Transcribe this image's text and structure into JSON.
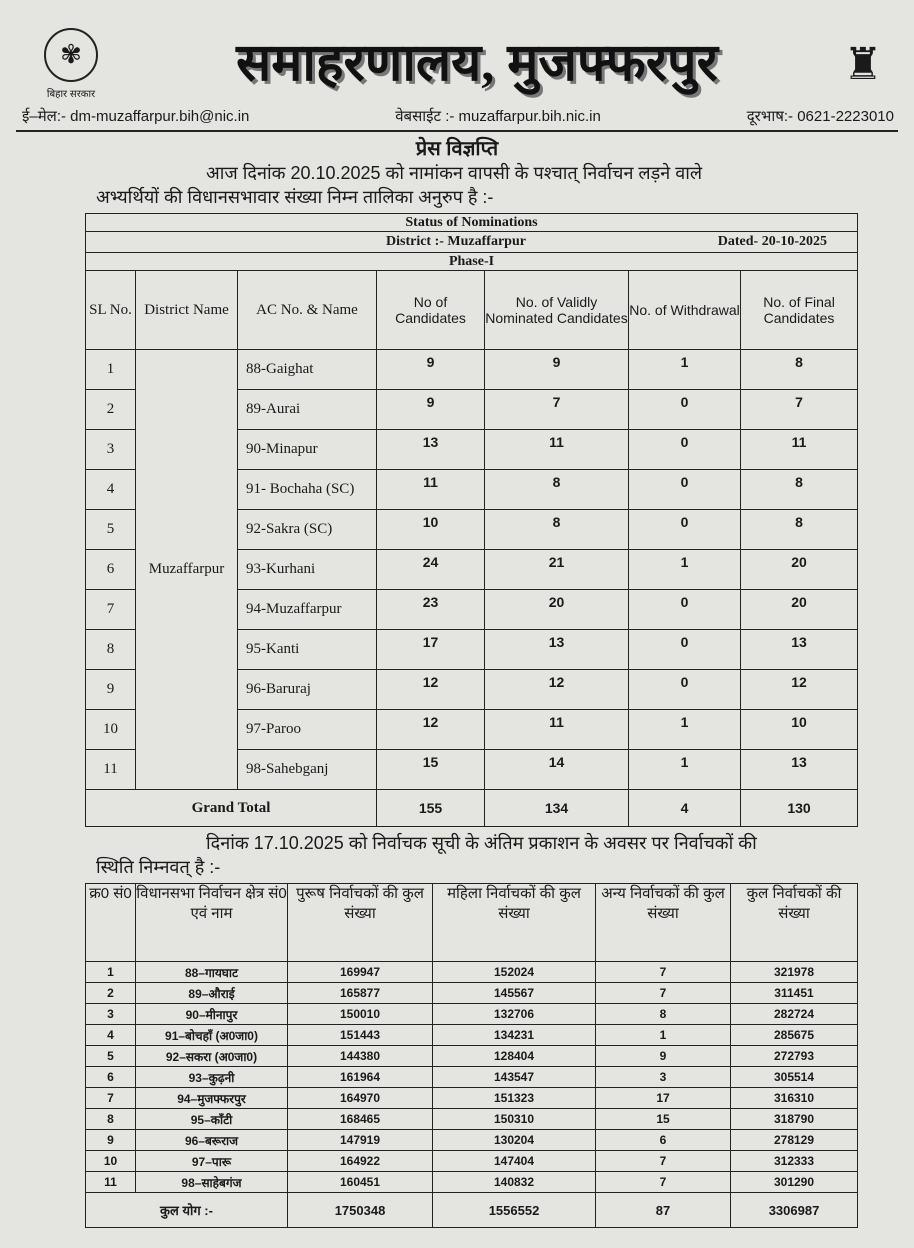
{
  "header": {
    "logo_left_caption": "बिहार सरकार",
    "title": "समाहरणालय, मुजफ्फरपुर",
    "email": "ई–मेल:- dm-muzaffarpur.bih@nic.in",
    "website": "वेबसाईट :- muzaffarpur.bih.nic.in",
    "phone": "दूरभाष:- 0621-2223010",
    "press_release": "प्रेस विज्ञप्ति",
    "intro_line1": "आज दिनांक 20.10.2025 को नामांकन वापसी के पश्चात् निर्वाचन लड़ने वाले",
    "intro_line2": "अभ्यर्थियों की विधानसभावार संख्या निम्न तालिका अनुरुप है :-"
  },
  "nominations": {
    "title": "Status of Nominations",
    "district": "District :- Muzaffarpur",
    "dated": "Dated- 20-10-2025",
    "phase": "Phase-I",
    "columns": [
      "SL No.",
      "District Name",
      "AC No. & Name",
      "No of Candidates",
      "No. of Validly Nominated Candidates",
      "No. of Withdrawal",
      "No. of Final Candidates"
    ],
    "district_name": "Muzaffarpur",
    "rows": [
      [
        "1",
        "88-Gaighat",
        "9",
        "9",
        "1",
        "8"
      ],
      [
        "2",
        "89-Aurai",
        "9",
        "7",
        "0",
        "7"
      ],
      [
        "3",
        "90-Minapur",
        "13",
        "11",
        "0",
        "11"
      ],
      [
        "4",
        "91- Bochaha (SC)",
        "11",
        "8",
        "0",
        "8"
      ],
      [
        "5",
        "92-Sakra (SC)",
        "10",
        "8",
        "0",
        "8"
      ],
      [
        "6",
        "93-Kurhani",
        "24",
        "21",
        "1",
        "20"
      ],
      [
        "7",
        "94-Muzaffarpur",
        "23",
        "20",
        "0",
        "20"
      ],
      [
        "8",
        "95-Kanti",
        "17",
        "13",
        "0",
        "13"
      ],
      [
        "9",
        "96-Baruraj",
        "12",
        "12",
        "0",
        "12"
      ],
      [
        "10",
        "97-Paroo",
        "12",
        "11",
        "1",
        "10"
      ],
      [
        "11",
        "98-Sahebganj",
        "15",
        "14",
        "1",
        "13"
      ]
    ],
    "total_label": "Grand Total",
    "totals": [
      "155",
      "134",
      "4",
      "130"
    ]
  },
  "electors_intro_line1": "दिनांक 17.10.2025 को निर्वाचक सूची के अंतिम प्रकाशन के अवसर पर निर्वाचकों की",
  "electors_intro_line2": "स्थिति निम्नवत् है :-",
  "electors": {
    "columns": [
      "क्र0 सं0",
      "विधानसभा निर्वाचन क्षेत्र सं0 एवं नाम",
      "पुरूष निर्वाचकों की कुल संख्या",
      "महिला निर्वाचकों की कुल संख्या",
      "अन्य निर्वाचकों की कुल संख्या",
      "कुल निर्वाचकों की संख्या"
    ],
    "rows": [
      [
        "1",
        "88–गायघाट",
        "169947",
        "152024",
        "7",
        "321978"
      ],
      [
        "2",
        "89–औराई",
        "165877",
        "145567",
        "7",
        "311451"
      ],
      [
        "3",
        "90–मीनापुर",
        "150010",
        "132706",
        "8",
        "282724"
      ],
      [
        "4",
        "91–बोचहाँ (अ0जा0)",
        "151443",
        "134231",
        "1",
        "285675"
      ],
      [
        "5",
        "92–सकरा (अ0जा0)",
        "144380",
        "128404",
        "9",
        "272793"
      ],
      [
        "6",
        "93–कुढ़नी",
        "161964",
        "143547",
        "3",
        "305514"
      ],
      [
        "7",
        "94–मुजफ्फरपुर",
        "164970",
        "151323",
        "17",
        "316310"
      ],
      [
        "8",
        "95–काँटी",
        "168465",
        "150310",
        "15",
        "318790"
      ],
      [
        "9",
        "96–बरूराज",
        "147919",
        "130204",
        "6",
        "278129"
      ],
      [
        "10",
        "97–पारू",
        "164922",
        "147404",
        "7",
        "312333"
      ],
      [
        "11",
        "98–साहेबगंज",
        "160451",
        "140832",
        "7",
        "301290"
      ]
    ],
    "total_label": "कुल योग :-",
    "totals": [
      "1750348",
      "1556552",
      "87",
      "3306987"
    ]
  }
}
